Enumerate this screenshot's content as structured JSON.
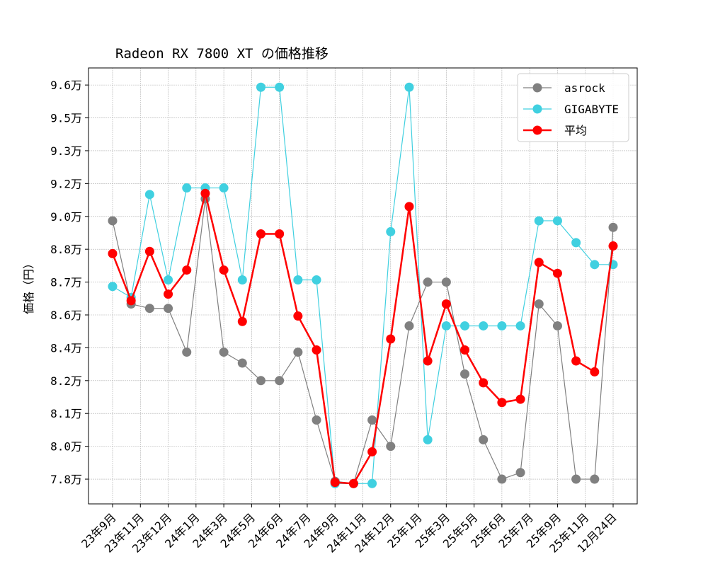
{
  "chart_data": {
    "type": "line",
    "title": "Radeon RX 7800 XT の価格推移",
    "xlabel": "",
    "ylabel": "価格（円）",
    "ylim": [
      76870,
      96780
    ],
    "grid": true,
    "legend_position": "top-right",
    "y_ticks": [
      {
        "value": 78000,
        "label": "7.8万"
      },
      {
        "value": 79500,
        "label": "8.0万"
      },
      {
        "value": 81000,
        "label": "8.1万"
      },
      {
        "value": 82500,
        "label": "8.2万"
      },
      {
        "value": 84000,
        "label": "8.4万"
      },
      {
        "value": 85500,
        "label": "8.6万"
      },
      {
        "value": 87000,
        "label": "8.7万"
      },
      {
        "value": 88500,
        "label": "8.8万"
      },
      {
        "value": 90000,
        "label": "9.0万"
      },
      {
        "value": 91500,
        "label": "9.2万"
      },
      {
        "value": 93000,
        "label": "9.3万"
      },
      {
        "value": 94500,
        "label": "9.5万"
      },
      {
        "value": 96000,
        "label": "9.6万"
      }
    ],
    "x_tick_labels": [
      "23年9月",
      "23年11月",
      "23年12月",
      "24年1月",
      "24年3月",
      "24年5月",
      "24年6月",
      "24年7月",
      "24年9月",
      "24年11月",
      "24年12月",
      "25年1月",
      "25年3月",
      "25年5月",
      "25年6月",
      "25年7月",
      "25年9月",
      "25年11月",
      "12月24日"
    ],
    "series": [
      {
        "name": "asrock",
        "color": "#808080",
        "line_width": 1.2,
        "values": [
          89800,
          86000,
          85800,
          85800,
          83800,
          90800,
          83800,
          83300,
          82500,
          82500,
          83800,
          80700,
          77900,
          77800,
          80700,
          79500,
          85000,
          87000,
          87000,
          82800,
          79800,
          78000,
          78300,
          86000,
          85000,
          78000,
          78000,
          89500
        ]
      },
      {
        "name": "GIGABYTE",
        "color": "#40d0e0",
        "line_width": 1.2,
        "values": [
          86800,
          86300,
          91000,
          87100,
          91300,
          91300,
          91300,
          87100,
          95900,
          95900,
          87100,
          87100,
          77800,
          77800,
          77800,
          89300,
          95900,
          79800,
          85000,
          85000,
          85000,
          85000,
          85000,
          89800,
          89800,
          88800,
          87800,
          87800
        ]
      },
      {
        "name": "平均",
        "color": "#ff0000",
        "line_width": 2.5,
        "values": [
          88300,
          86150,
          88400,
          86450,
          87550,
          91050,
          87550,
          85200,
          89200,
          89200,
          85450,
          83900,
          77850,
          77800,
          79250,
          84400,
          90450,
          83400,
          86000,
          83900,
          82400,
          81500,
          81650,
          87900,
          87400,
          83400,
          82900,
          88650
        ]
      }
    ]
  }
}
